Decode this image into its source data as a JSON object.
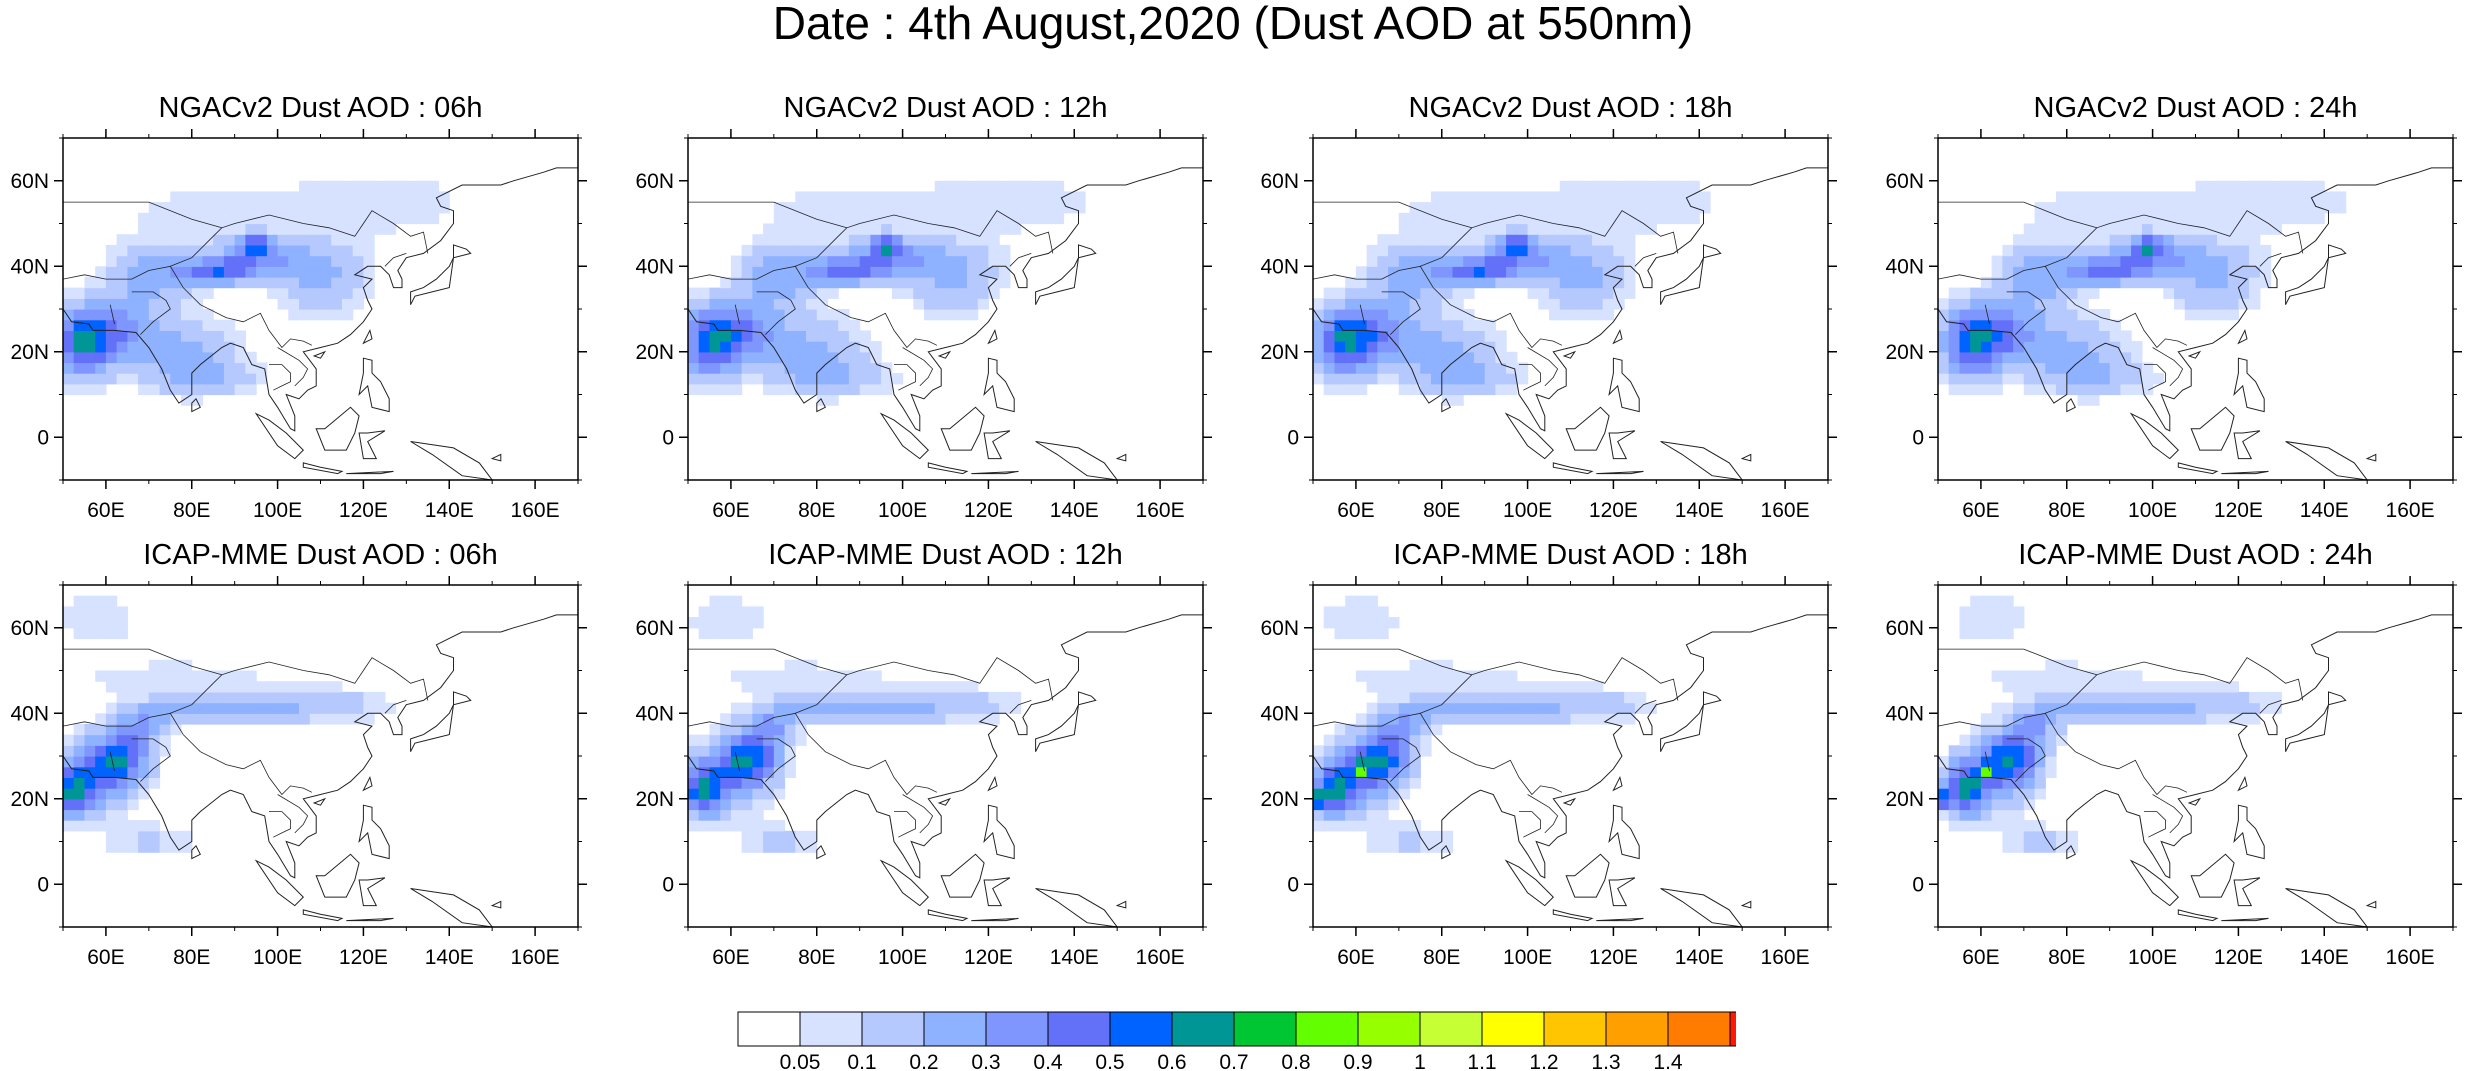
{
  "title": "Date : 4th August,2020 (Dust AOD at 550nm)",
  "axes": {
    "lat_ticks": [
      "60N",
      "40N",
      "20N",
      "0"
    ],
    "lon_ticks": [
      "60E",
      "80E",
      "100E",
      "120E",
      "140E",
      "160E"
    ],
    "lon_range": [
      50,
      170
    ],
    "lat_range": [
      -10,
      70
    ]
  },
  "panels": [
    {
      "title": "NGACv2 Dust AOD : 06h",
      "model": "ngac",
      "hour": 6
    },
    {
      "title": "NGACv2 Dust AOD : 12h",
      "model": "ngac",
      "hour": 12
    },
    {
      "title": "NGACv2 Dust AOD : 18h",
      "model": "ngac",
      "hour": 18
    },
    {
      "title": "NGACv2 Dust AOD : 24h",
      "model": "ngac",
      "hour": 24
    },
    {
      "title": "ICAP-MME Dust AOD : 06h",
      "model": "icap",
      "hour": 6
    },
    {
      "title": "ICAP-MME Dust AOD : 12h",
      "model": "icap",
      "hour": 12
    },
    {
      "title": "ICAP-MME Dust AOD : 18h",
      "model": "icap",
      "hour": 18
    },
    {
      "title": "ICAP-MME Dust AOD : 24h",
      "model": "icap",
      "hour": 24
    }
  ],
  "colorbar": {
    "colors": [
      "#ffffff",
      "#d6e2ff",
      "#b5c9ff",
      "#8eb2ff",
      "#7f96ff",
      "#6370f8",
      "#0063ff",
      "#009696",
      "#00c633",
      "#63ff00",
      "#96ff00",
      "#c6ff33",
      "#ffff00",
      "#ffc600",
      "#ffa000",
      "#ff7c00",
      "#ff1900"
    ],
    "labels": [
      "0.05",
      "0.1",
      "0.2",
      "0.3",
      "0.4",
      "0.5",
      "0.6",
      "0.7",
      "0.8",
      "0.9",
      "1",
      "1.1",
      "1.2",
      "1.3",
      "1.4"
    ]
  }
}
